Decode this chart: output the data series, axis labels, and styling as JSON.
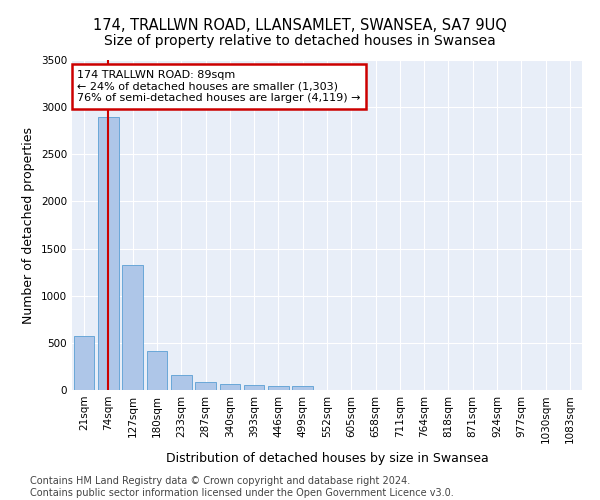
{
  "title": "174, TRALLWN ROAD, LLANSAMLET, SWANSEA, SA7 9UQ",
  "subtitle": "Size of property relative to detached houses in Swansea",
  "xlabel": "Distribution of detached houses by size in Swansea",
  "ylabel": "Number of detached properties",
  "bin_labels": [
    "21sqm",
    "74sqm",
    "127sqm",
    "180sqm",
    "233sqm",
    "287sqm",
    "340sqm",
    "393sqm",
    "446sqm",
    "499sqm",
    "552sqm",
    "605sqm",
    "658sqm",
    "711sqm",
    "764sqm",
    "818sqm",
    "871sqm",
    "924sqm",
    "977sqm",
    "1030sqm",
    "1083sqm"
  ],
  "bar_values": [
    570,
    2900,
    1330,
    410,
    155,
    80,
    60,
    55,
    45,
    45,
    0,
    0,
    0,
    0,
    0,
    0,
    0,
    0,
    0,
    0,
    0
  ],
  "bar_color": "#aec6e8",
  "bar_edge_color": "#5a9fd4",
  "property_line_x": 1.0,
  "annotation_text": "174 TRALLWN ROAD: 89sqm\n← 24% of detached houses are smaller (1,303)\n76% of semi-detached houses are larger (4,119) →",
  "annotation_box_color": "#ffffff",
  "annotation_box_edge_color": "#cc0000",
  "vertical_line_color": "#cc0000",
  "ylim": [
    0,
    3500
  ],
  "yticks": [
    0,
    500,
    1000,
    1500,
    2000,
    2500,
    3000,
    3500
  ],
  "footer_line1": "Contains HM Land Registry data © Crown copyright and database right 2024.",
  "footer_line2": "Contains public sector information licensed under the Open Government Licence v3.0.",
  "bg_color": "#e8eef8",
  "fig_bg_color": "#ffffff",
  "title_fontsize": 10.5,
  "axis_label_fontsize": 9,
  "tick_fontsize": 7.5,
  "footer_fontsize": 7,
  "annotation_fontsize": 8
}
